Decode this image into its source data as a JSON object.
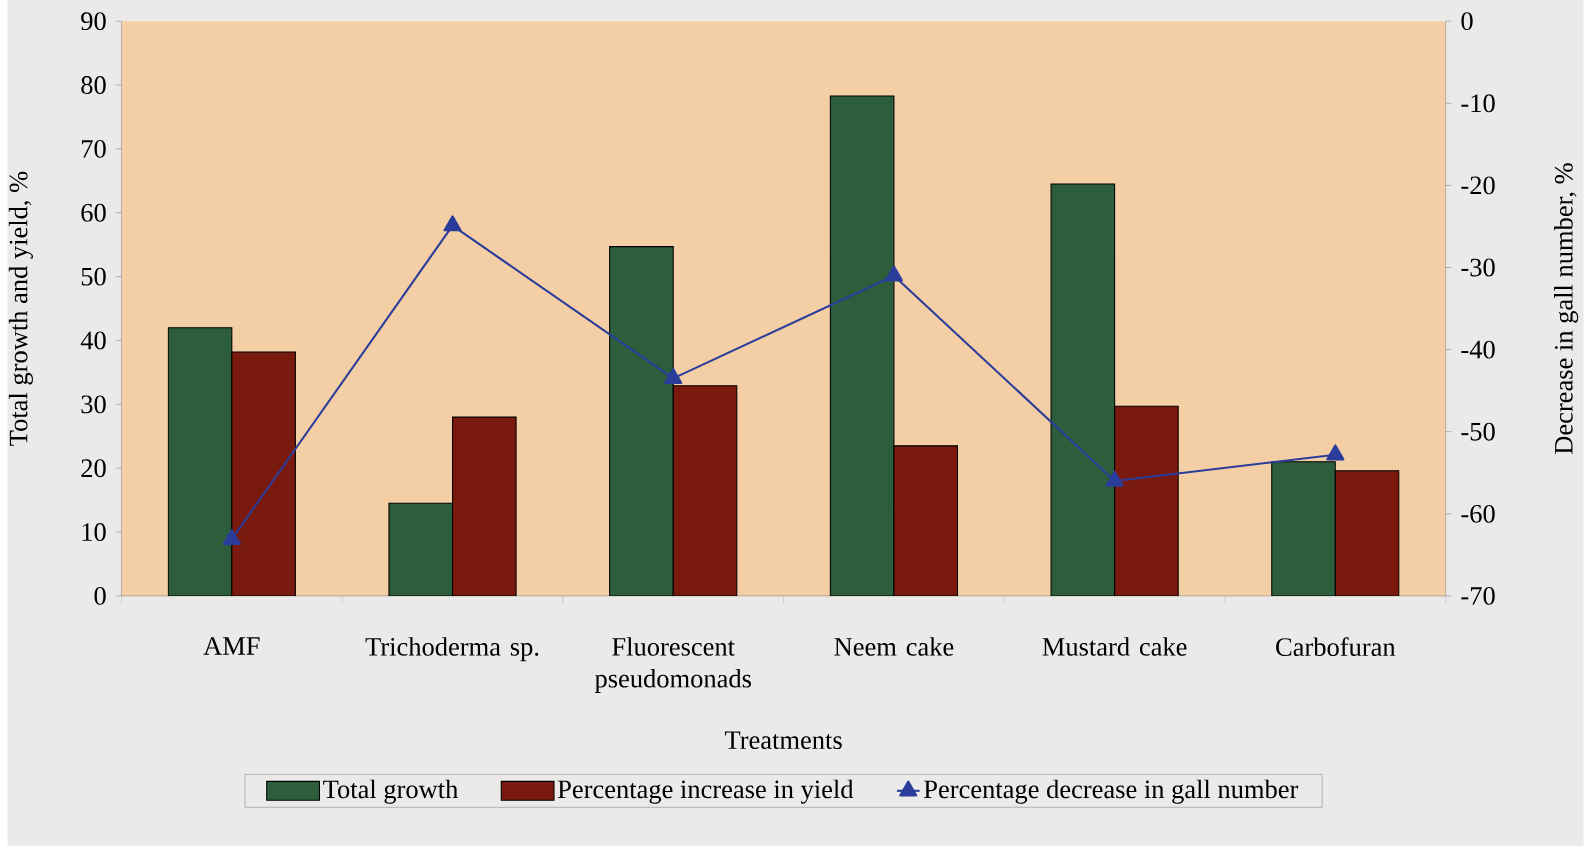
{
  "chart_data": {
    "type": "bar",
    "xlabel": "Treatments",
    "ylabel": "Total growth  and yield, %",
    "y2label": "Decrease in gall number, %",
    "categories": [
      "AMF",
      "Trichoderma sp.",
      "Fluorescent pseudomonads",
      "Neem cake",
      "Mustard cake",
      "Carbofuran"
    ],
    "ylim": [
      0,
      90
    ],
    "yticks": [
      0,
      10,
      20,
      30,
      40,
      50,
      60,
      70,
      80,
      90
    ],
    "y2lim": [
      -70,
      0
    ],
    "y2ticks": [
      -70,
      -60,
      -50,
      -40,
      -30,
      -20,
      -10,
      0
    ],
    "legend": "bottom",
    "series": [
      {
        "name": "Total growth",
        "color": "#2d5e3c",
        "values": [
          42,
          14.5,
          54.7,
          78.3,
          64.5,
          21
        ]
      },
      {
        "name": "Percentage increase in yield",
        "color": "#7a1a0e",
        "values": [
          38.2,
          28,
          32.9,
          23.5,
          29.7,
          19.6
        ]
      },
      {
        "name": "Percentage decrease in gall number",
        "type": "line",
        "axis": "y2",
        "color": "#2b3d9b",
        "marker": "triangle",
        "values": [
          -63.1,
          -24.9,
          -43.5,
          -31,
          -56,
          -52.8
        ]
      }
    ]
  }
}
